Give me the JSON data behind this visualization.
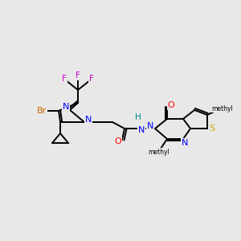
{
  "background_color": "#e8e8e8",
  "atom_colors": {
    "C": "#000000",
    "N": "#0000ff",
    "O": "#ff0000",
    "S": "#ccaa00",
    "Br": "#cc6600",
    "F": "#cc00cc",
    "H": "#008888"
  },
  "bond_color": "#000000",
  "figsize": [
    3.0,
    3.0
  ],
  "dpi": 100
}
